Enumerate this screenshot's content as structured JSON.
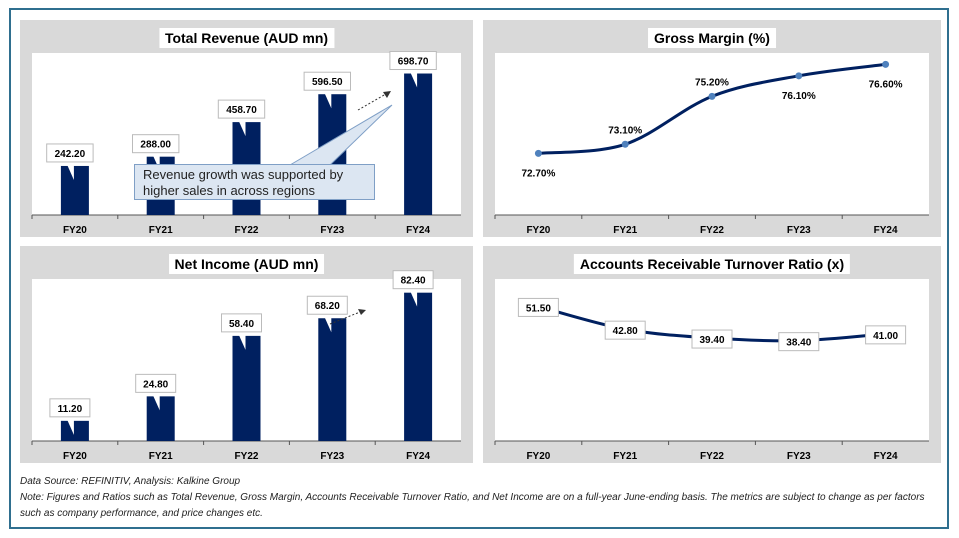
{
  "chart_data": [
    {
      "type": "bar",
      "title": "Total Revenue (AUD mn)",
      "categories": [
        "FY20",
        "FY21",
        "FY22",
        "FY23",
        "FY24"
      ],
      "values": [
        242.2,
        288.0,
        458.7,
        596.5,
        698.7
      ],
      "labels": [
        "242.20",
        "288.00",
        "458.70",
        "596.50",
        "698.70"
      ],
      "ylim": [
        0,
        800
      ],
      "color": "#002060",
      "annotation": "Revenue growth was supported by higher sales in across regions"
    },
    {
      "type": "line",
      "title": "Gross Margin (%)",
      "categories": [
        "FY20",
        "FY21",
        "FY22",
        "FY23",
        "FY24"
      ],
      "values": [
        72.7,
        73.1,
        75.2,
        76.1,
        76.6
      ],
      "labels": [
        "72.70%",
        "73.10%",
        "75.20%",
        "76.10%",
        "76.60%"
      ],
      "ylim": [
        70,
        77.1
      ],
      "color": "#002060"
    },
    {
      "type": "bar",
      "title": "Net Income (AUD mn)",
      "categories": [
        "FY20",
        "FY21",
        "FY22",
        "FY23",
        "FY24"
      ],
      "values": [
        11.2,
        24.8,
        58.4,
        68.2,
        82.4
      ],
      "labels": [
        "11.20",
        "24.80",
        "58.40",
        "68.20",
        "82.40"
      ],
      "ylim": [
        0,
        90
      ],
      "color": "#002060"
    },
    {
      "type": "line",
      "title": "Accounts Receivable Turnover Ratio (x)",
      "categories": [
        "FY20",
        "FY21",
        "FY22",
        "FY23",
        "FY24"
      ],
      "values": [
        51.5,
        42.8,
        39.4,
        38.4,
        41.0
      ],
      "labels": [
        "51.50",
        "42.80",
        "39.40",
        "38.40",
        "41.00"
      ],
      "ylim": [
        0,
        62
      ],
      "color": "#002060"
    }
  ],
  "footer": {
    "source": "Data Source: REFINITIV, Analysis: Kalkine Group",
    "note": "Note: Figures and Ratios such as Total Revenue, Gross Margin, Accounts Receivable Turnover Ratio, and Net Income  are on a full-year June-ending basis. The metrics are subject to change as per factors such as company performance, and price changes etc."
  }
}
